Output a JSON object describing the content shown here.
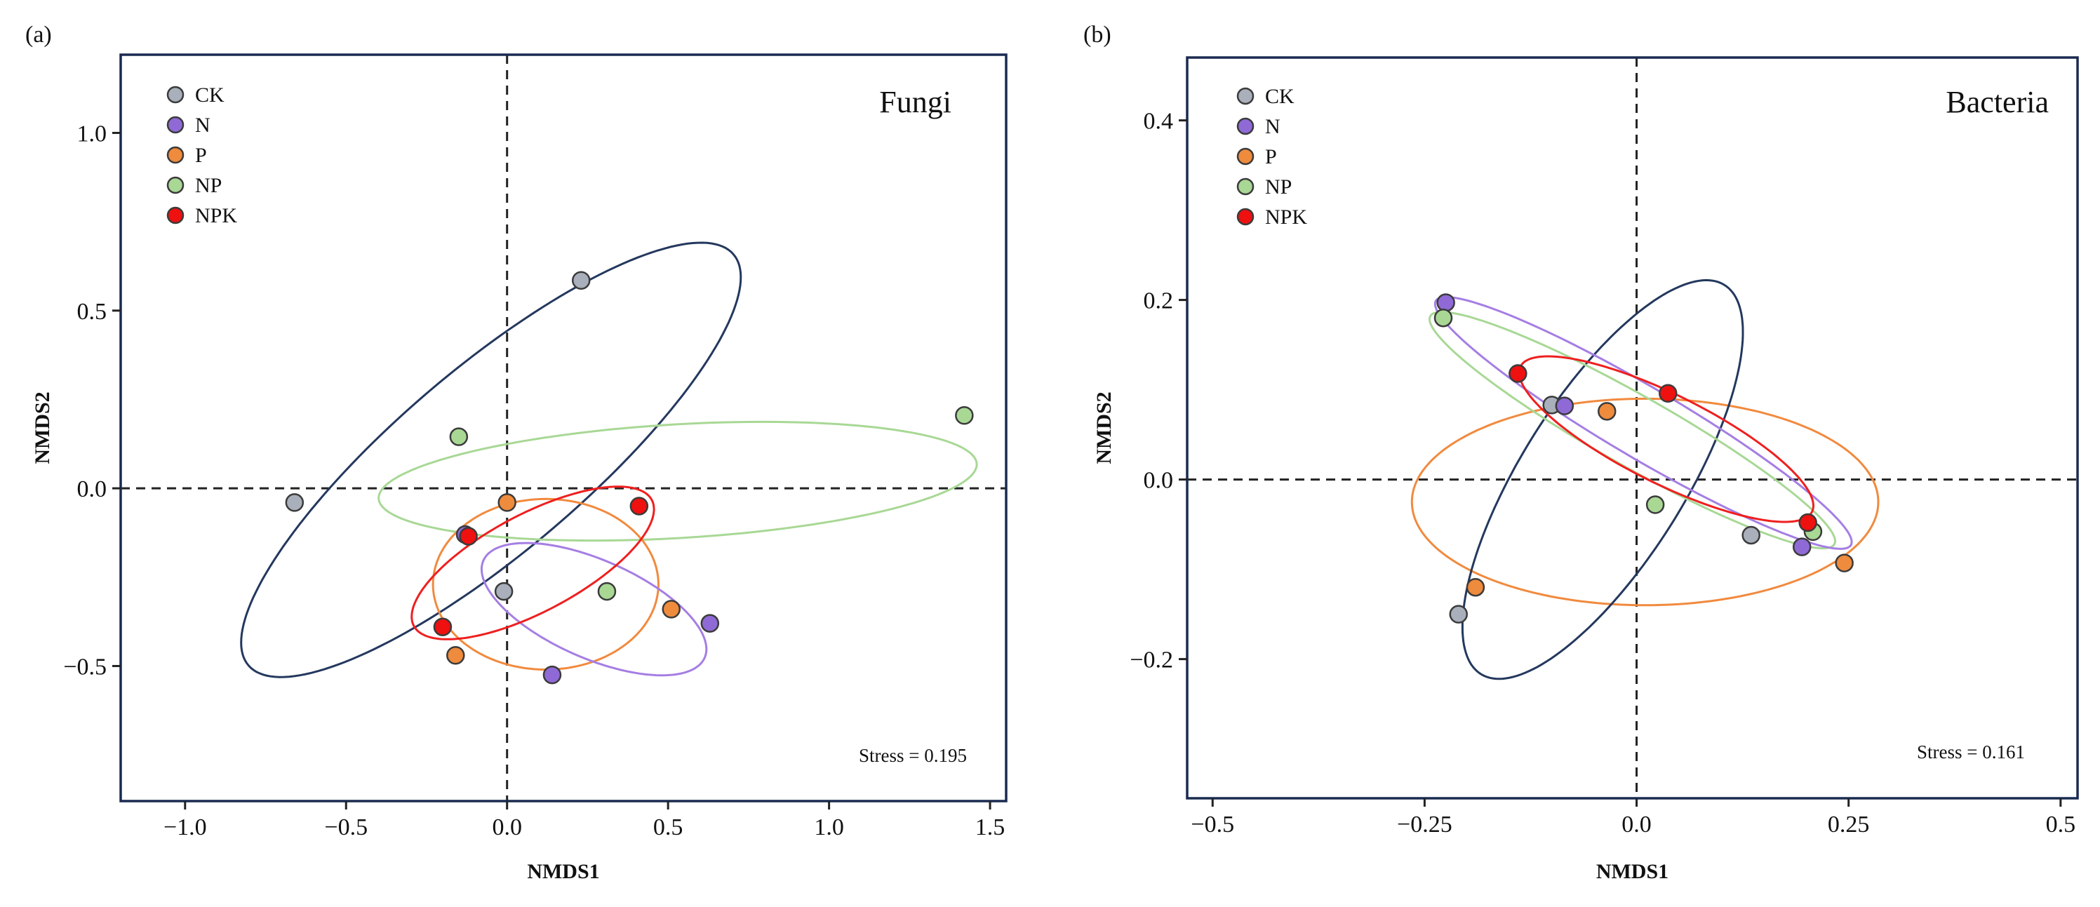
{
  "colors": {
    "CK": "#a9b0bb",
    "N": "#8f6ad6",
    "P": "#ef8b3c",
    "NP": "#a9d895",
    "NPK": "#ef1010",
    "frame": "#1a2a50",
    "ellipse_CK": "#24385e",
    "ellipse_N": "#a57ee3",
    "ellipse_P": "#f18a3e",
    "ellipse_NP": "#a8d895",
    "ellipse_NPK": "#ef1f1f"
  },
  "chart_data": [
    {
      "type": "scatter",
      "panel": "(a)",
      "tag": "Fungi",
      "stress": "Stress = 0.195",
      "xlabel": "NMDS1",
      "ylabel": "NMDS2",
      "xlim": [
        -1.2,
        1.55
      ],
      "ylim": [
        -0.88,
        1.22
      ],
      "xticks": [
        -1.0,
        -0.5,
        0.0,
        0.5,
        1.0,
        1.5
      ],
      "xtick_labels": [
        "−1.0",
        "−0.5",
        "0.0",
        "0.5",
        "1.0",
        "1.5"
      ],
      "yticks": [
        -0.5,
        0.0,
        0.5,
        1.0
      ],
      "ytick_labels": [
        "−0.5",
        "0.0",
        "0.5",
        "1.0"
      ],
      "legend": [
        "CK",
        "N",
        "P",
        "NP",
        "NPK"
      ],
      "legend_position": "top-left",
      "series": [
        {
          "name": "CK",
          "points": [
            [
              0.23,
              0.585
            ],
            [
              -0.66,
              -0.04
            ],
            [
              -0.01,
              -0.29
            ]
          ]
        },
        {
          "name": "N",
          "points": [
            [
              0.63,
              -0.38
            ],
            [
              0.14,
              -0.525
            ],
            [
              -0.13,
              -0.13
            ]
          ]
        },
        {
          "name": "P",
          "points": [
            [
              0.51,
              -0.34
            ],
            [
              -0.16,
              -0.47
            ],
            [
              0.0,
              -0.04
            ]
          ]
        },
        {
          "name": "NP",
          "points": [
            [
              1.42,
              0.205
            ],
            [
              -0.15,
              0.145
            ],
            [
              0.31,
              -0.29
            ]
          ]
        },
        {
          "name": "NPK",
          "points": [
            [
              -0.2,
              -0.39
            ],
            [
              -0.12,
              -0.135
            ],
            [
              0.41,
              -0.05
            ]
          ]
        }
      ],
      "ellipses": [
        {
          "name": "CK",
          "cx": -0.05,
          "cy": 0.08,
          "rx": 0.95,
          "ry": 0.27,
          "angle_deg": 37
        },
        {
          "name": "NP",
          "cx": 0.53,
          "cy": 0.02,
          "rx": 0.93,
          "ry": 0.16,
          "angle_deg": 3
        },
        {
          "name": "P",
          "cx": 0.12,
          "cy": -0.27,
          "rx": 0.35,
          "ry": 0.24,
          "angle_deg": 0
        },
        {
          "name": "N",
          "cx": 0.27,
          "cy": -0.34,
          "rx": 0.37,
          "ry": 0.14,
          "angle_deg": -21
        },
        {
          "name": "NPK",
          "cx": 0.08,
          "cy": -0.21,
          "rx": 0.41,
          "ry": 0.14,
          "angle_deg": 25
        }
      ]
    },
    {
      "type": "scatter",
      "panel": "(b)",
      "tag": "Bacteria",
      "stress": "Stress = 0.161",
      "xlabel": "NMDS1",
      "ylabel": "NMDS2",
      "xlim": [
        -0.53,
        0.52
      ],
      "ylim": [
        -0.355,
        0.47
      ],
      "xticks": [
        -0.5,
        -0.25,
        0.0,
        0.25,
        0.5
      ],
      "xtick_labels": [
        "−0.5",
        "−0.25",
        "0.0",
        "0.25",
        "0.5"
      ],
      "yticks": [
        -0.2,
        0.0,
        0.2,
        0.4
      ],
      "ytick_labels": [
        "−0.2",
        "0.0",
        "0.2",
        "0.4"
      ],
      "legend": [
        "CK",
        "N",
        "P",
        "NP",
        "NPK"
      ],
      "legend_position": "top-left",
      "series": [
        {
          "name": "CK",
          "points": [
            [
              -0.1,
              0.083
            ],
            [
              0.135,
              -0.062
            ],
            [
              -0.21,
              -0.15
            ]
          ]
        },
        {
          "name": "N",
          "points": [
            [
              -0.225,
              0.197
            ],
            [
              -0.085,
              0.082
            ],
            [
              0.195,
              -0.075
            ]
          ]
        },
        {
          "name": "P",
          "points": [
            [
              -0.035,
              0.076
            ],
            [
              0.245,
              -0.093
            ],
            [
              -0.19,
              -0.12
            ]
          ]
        },
        {
          "name": "NP",
          "points": [
            [
              -0.228,
              0.18
            ],
            [
              0.022,
              -0.028
            ],
            [
              0.208,
              -0.058
            ]
          ]
        },
        {
          "name": "NPK",
          "points": [
            [
              -0.14,
              0.118
            ],
            [
              0.037,
              0.096
            ],
            [
              0.202,
              -0.048
            ]
          ]
        }
      ],
      "ellipses": [
        {
          "name": "P",
          "cx": 0.01,
          "cy": -0.025,
          "rx": 0.275,
          "ry": 0.115,
          "angle_deg": 0
        },
        {
          "name": "CK",
          "cx": -0.04,
          "cy": 0.0,
          "rx": 0.26,
          "ry": 0.095,
          "angle_deg": 56
        },
        {
          "name": "NP",
          "cx": -0.005,
          "cy": 0.055,
          "rx": 0.27,
          "ry": 0.04,
          "angle_deg": -28
        },
        {
          "name": "N",
          "cx": 0.008,
          "cy": 0.063,
          "rx": 0.28,
          "ry": 0.04,
          "angle_deg": -29
        },
        {
          "name": "NPK",
          "cx": 0.035,
          "cy": 0.045,
          "rx": 0.19,
          "ry": 0.05,
          "angle_deg": -25
        }
      ]
    }
  ]
}
